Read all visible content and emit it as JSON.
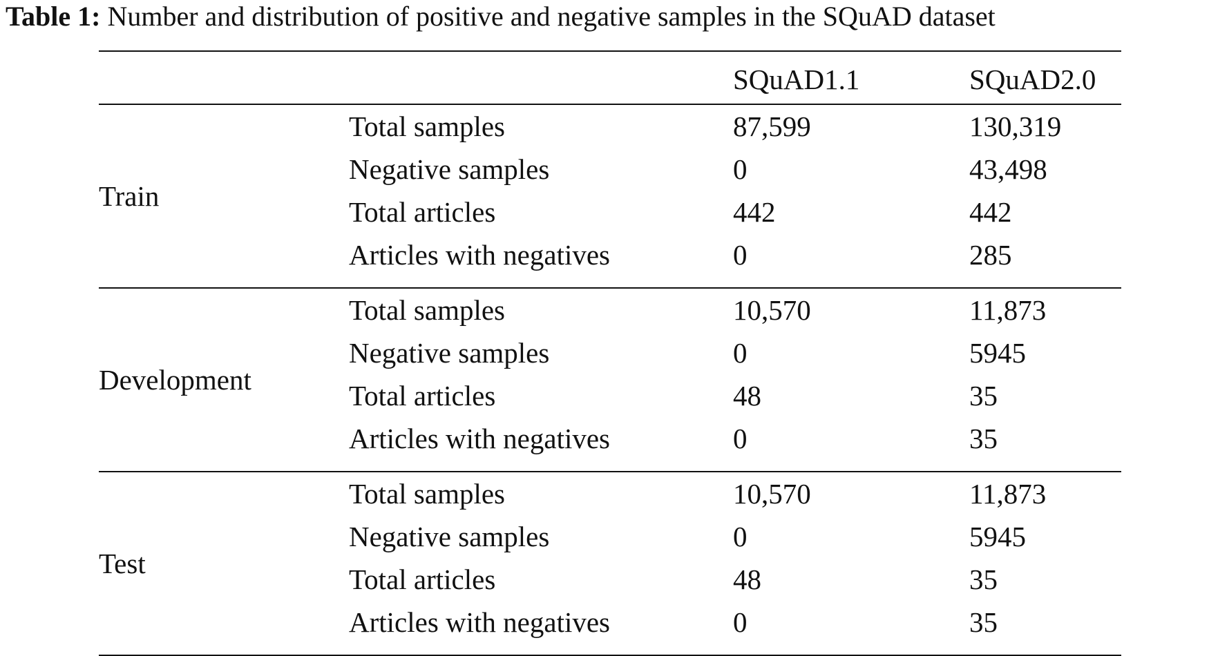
{
  "caption": {
    "label": "Table 1:",
    "text": "Number and distribution of positive and negative samples in the SQuAD dataset"
  },
  "table": {
    "columns": [
      "",
      "",
      "SQuAD1.1",
      "SQuAD2.0"
    ],
    "groups": [
      {
        "split": "Train",
        "rows": [
          {
            "metric": "Total samples",
            "squad11": "87,599",
            "squad20": "130,319"
          },
          {
            "metric": "Negative samples",
            "squad11": "0",
            "squad20": "43,498"
          },
          {
            "metric": "Total articles",
            "squad11": "442",
            "squad20": "442"
          },
          {
            "metric": "Articles with negatives",
            "squad11": "0",
            "squad20": "285"
          }
        ]
      },
      {
        "split": "Development",
        "rows": [
          {
            "metric": "Total samples",
            "squad11": "10,570",
            "squad20": "11,873"
          },
          {
            "metric": "Negative samples",
            "squad11": "0",
            "squad20": "5945"
          },
          {
            "metric": "Total articles",
            "squad11": "48",
            "squad20": "35"
          },
          {
            "metric": "Articles with negatives",
            "squad11": "0",
            "squad20": "35"
          }
        ]
      },
      {
        "split": "Test",
        "rows": [
          {
            "metric": "Total samples",
            "squad11": "10,570",
            "squad20": "11,873"
          },
          {
            "metric": "Negative samples",
            "squad11": "0",
            "squad20": "5945"
          },
          {
            "metric": "Total articles",
            "squad11": "48",
            "squad20": "35"
          },
          {
            "metric": "Articles with negatives",
            "squad11": "0",
            "squad20": "35"
          }
        ]
      }
    ]
  }
}
